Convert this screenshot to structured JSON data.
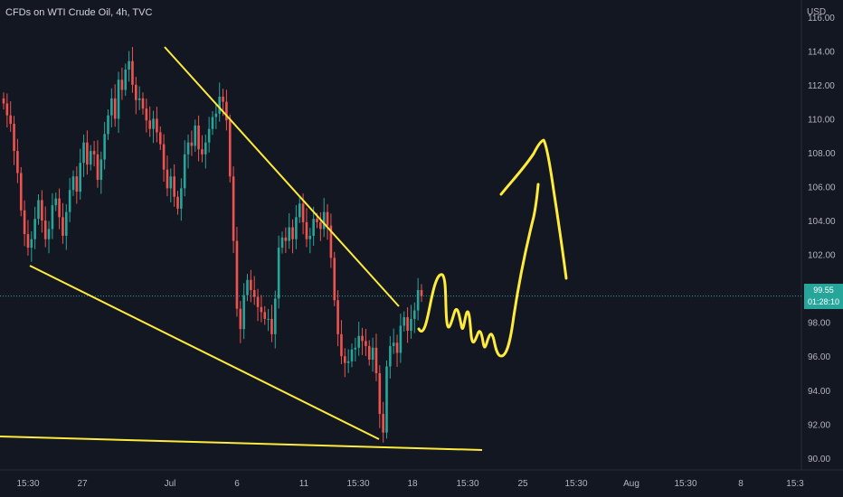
{
  "header": {
    "title": "CFDs on WTI Crude Oil, 4h, TVC"
  },
  "price_axis": {
    "currency": "USD",
    "current_price": "99.55",
    "countdown": "01:28:10"
  },
  "colors": {
    "background": "#131722",
    "up_candle": "#26a69a",
    "down_candle": "#ef5350",
    "drawing": "#ffeb3b",
    "axis_text": "#b2b5be",
    "price_line": "#26a69a"
  },
  "chart_data": {
    "type": "candlestick",
    "x_ticks": [
      "15:30",
      "27",
      "Jul",
      "6",
      "11",
      "15:30",
      "18",
      "15:30",
      "25",
      "15:30",
      "Aug",
      "15:30",
      "8",
      "15:3"
    ],
    "y_ticks": [
      "116.00",
      "114.00",
      "112.00",
      "110.00",
      "108.00",
      "106.00",
      "104.00",
      "102.00",
      "100.00",
      "98.00",
      "96.00",
      "94.00",
      "92.00",
      "90.00"
    ],
    "ylim": [
      89.3,
      117.0
    ],
    "current_price": 99.55,
    "candle_closes": [
      110.9,
      110.2,
      109.7,
      108.1,
      106.8,
      104.6,
      103.2,
      102.4,
      102.9,
      104.1,
      105.2,
      104.0,
      102.9,
      103.5,
      104.9,
      105.3,
      104.2,
      103.1,
      104.5,
      105.8,
      106.6,
      105.7,
      107.4,
      108.6,
      107.3,
      108.1,
      107.9,
      106.4,
      107.6,
      109.1,
      110.2,
      111.2,
      110.0,
      112.3,
      111.7,
      112.9,
      113.4,
      112.0,
      111.1,
      111.2,
      110.6,
      109.9,
      109.4,
      110.0,
      109.2,
      108.5,
      107.0,
      105.9,
      106.6,
      105.4,
      104.7,
      105.9,
      107.9,
      108.6,
      108.4,
      109.6,
      108.2,
      107.9,
      108.6,
      109.4,
      110.1,
      110.3,
      111.3,
      111.0,
      109.9,
      106.6,
      102.8,
      98.8,
      97.6,
      99.6,
      100.5,
      99.9,
      99.5,
      98.9,
      98.6,
      98.2,
      98.2,
      97.3,
      99.4,
      102.4,
      103.0,
      102.8,
      103.6,
      102.9,
      104.2,
      105.0,
      103.9,
      102.9,
      103.1,
      104.1,
      103.9,
      103.5,
      104.5,
      103.7,
      101.8,
      99.3,
      97.3,
      96.0,
      95.6,
      95.7,
      96.4,
      96.5,
      97.2,
      96.9,
      96.6,
      95.8,
      96.5,
      95.0,
      92.6,
      91.5,
      95.4,
      96.6,
      96.8,
      96.2,
      97.8,
      98.3,
      97.5,
      98.2,
      98.7,
      99.9,
      99.55
    ],
    "drawings": [
      {
        "name": "wedge-upper-trendline",
        "from": [
          41,
          115.3
        ],
        "to": [
          110,
          99.9
        ]
      },
      {
        "name": "wedge-lower-trendline",
        "from": [
          7,
          101.2
        ],
        "to": [
          105,
          90.7
        ]
      },
      {
        "name": "horizontal-support-line",
        "from": [
          0,
          90.8
        ],
        "to": [
          133,
          89.9
        ]
      },
      {
        "name": "projected-path-arrow",
        "shape": "zigzag then rally to ~109.4"
      }
    ]
  }
}
